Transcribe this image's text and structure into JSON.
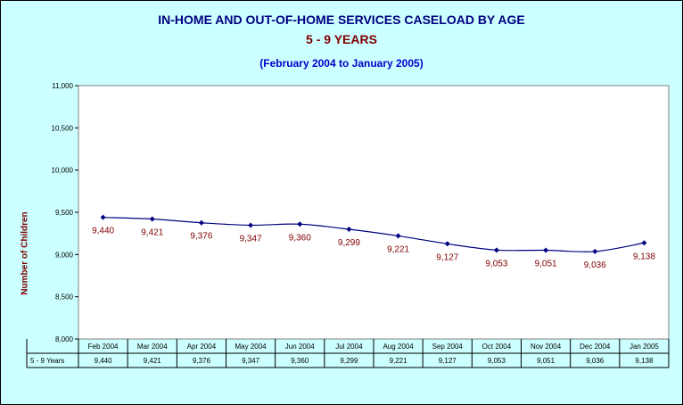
{
  "chart_data": {
    "type": "line",
    "title": "IN-HOME AND OUT-OF-HOME SERVICES CASELOAD BY AGE",
    "subtitle_group": "5 - 9 YEARS",
    "subtitle_period": "(February 2004 to January 2005)",
    "ylabel": "Number of Children",
    "ylim": [
      8000,
      11000
    ],
    "ytick_step": 500,
    "yticks": [
      "8,000",
      "8,500",
      "9,000",
      "9,500",
      "10,000",
      "10,500",
      "11,000"
    ],
    "categories": [
      "Feb 2004",
      "Mar 2004",
      "Apr 2004",
      "May 2004",
      "Jun 2004",
      "Jul 2004",
      "Aug 2004",
      "Sep 2004",
      "Oct 2004",
      "Nov 2004",
      "Dec 2004",
      "Jan 2005"
    ],
    "series": [
      {
        "name": "5 - 9 Years",
        "values": [
          9440,
          9421,
          9376,
          9347,
          9360,
          9299,
          9221,
          9127,
          9053,
          9051,
          9036,
          9138
        ],
        "labels": [
          "9,440",
          "9,421",
          "9,376",
          "9,347",
          "9,360",
          "9,299",
          "9,221",
          "9,127",
          "9,053",
          "9,051",
          "9,036",
          "9,138"
        ],
        "color": "#000080",
        "label_color": "#800000"
      }
    ],
    "grid": false,
    "data_table": true,
    "colors": {
      "background": "#ccffff",
      "plot_area": "#ffffff",
      "line": "#000080",
      "labels": "#800000"
    }
  }
}
